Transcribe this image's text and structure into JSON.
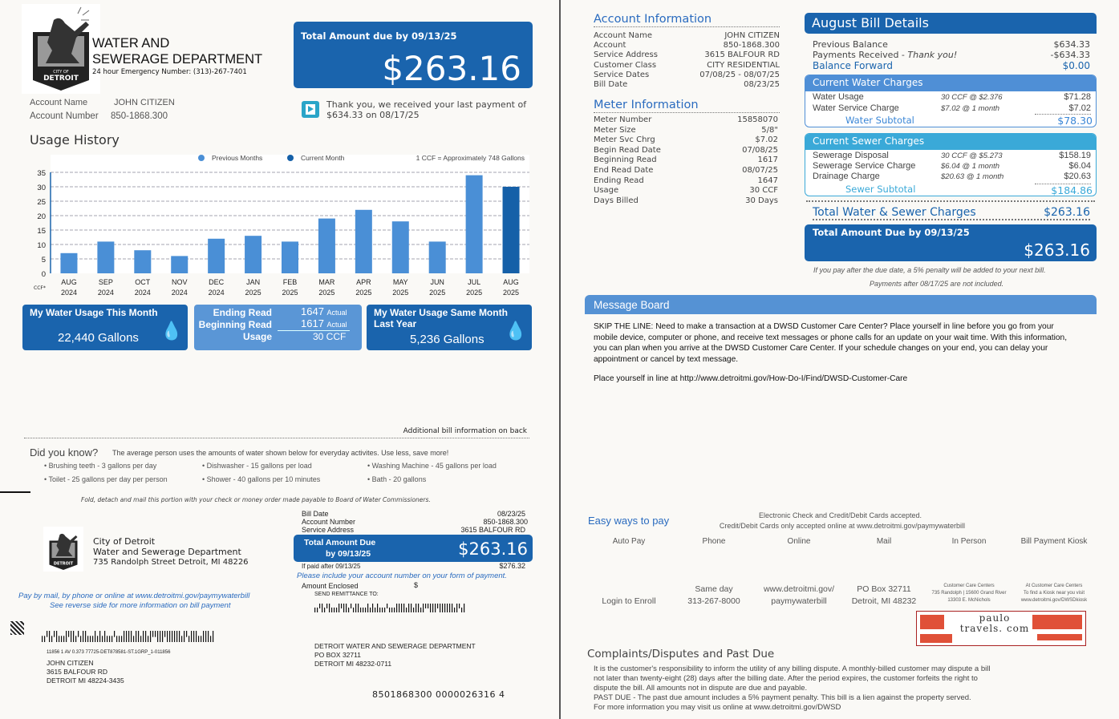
{
  "header": {
    "dept_line1": "WATER AND",
    "dept_line2": "SEWERAGE DEPARTMENT",
    "emergency": "24 hour Emergency Number: (313)-267-7401",
    "logo_text": "CITY OF DETROIT"
  },
  "total_box": {
    "label": "Total Amount due by 09/13/25",
    "amount": "$263.16"
  },
  "thank_you": {
    "line1": "Thank you, we received your last payment of",
    "line2": "$634.33  on  08/17/25",
    "icon": "play-icon"
  },
  "account": {
    "name_label": "Account Name",
    "name": "JOHN CITIZEN",
    "number_label": "Account Number",
    "number": "850-1868.300"
  },
  "usage": {
    "title": "Usage History"
  },
  "chart_data": {
    "type": "bar",
    "title": "",
    "ylabel": "CCF*",
    "ylim": [
      0,
      35
    ],
    "yticks": [
      0,
      5,
      10,
      15,
      20,
      25,
      30,
      35
    ],
    "grid": true,
    "legend": [
      {
        "name": "Previous Months",
        "color": "#4a8fd6"
      },
      {
        "name": "Current Month",
        "color": "#1560a8"
      }
    ],
    "legend_position": "top",
    "note": "1 CCF = Approximately 748 Gallons",
    "categories": [
      [
        "AUG",
        "2024"
      ],
      [
        "SEP",
        "2024"
      ],
      [
        "OCT",
        "2024"
      ],
      [
        "NOV",
        "2024"
      ],
      [
        "DEC",
        "2024"
      ],
      [
        "JAN",
        "2025"
      ],
      [
        "FEB",
        "2025"
      ],
      [
        "MAR",
        "2025"
      ],
      [
        "APR",
        "2025"
      ],
      [
        "MAY",
        "2025"
      ],
      [
        "JUN",
        "2025"
      ],
      [
        "JUL",
        "2025"
      ],
      [
        "AUG",
        "2025"
      ]
    ],
    "values": [
      7,
      11,
      8,
      6,
      12,
      13,
      11,
      19,
      22,
      18,
      11,
      34,
      30
    ],
    "current_index": 12
  },
  "usage_boxes": {
    "this_month_label": "My Water Usage This Month",
    "this_month_value": "22,440 Gallons",
    "ending_label": "Ending Read",
    "ending_value": "1647",
    "beginning_label": "Beginning Read",
    "beginning_value": "1617",
    "actual": "Actual",
    "usage_label": "Usage",
    "usage_value": "30 CCF",
    "last_year_label1": "My Water Usage Same Month",
    "last_year_label2": "Last Year",
    "last_year_value": "5,236 Gallons"
  },
  "did_you_know": {
    "additional": "Additional  bill  information  on  back",
    "title": "Did you know?",
    "intro": "The average person uses the amounts of water shown below for everyday activites.  Use less, save more!",
    "items": [
      "Brushing  teeth - 3 gallons per day",
      "Dishwasher - 15 gallons per load",
      "Washing  Machine - 45 gallons per load",
      "Toilet - 25 gallons per day per person",
      "Shower - 40 gallons per 10 minutes",
      "Bath - 20 gallons"
    ],
    "fold": "Fold,  detach  and  mail  this  portion  with  your  check  or  money  order  made  payable  to  Board  of  Water  Commissioners."
  },
  "stub": {
    "org1": "City of Detroit",
    "org2": "Water and Sewerage Department",
    "org3": "735 Randolph Street Detroit, MI 48226",
    "pay_line1": "Pay by mail, by phone or online at www.detroitmi.gov/paymywaterbill",
    "pay_line2": "See reverse side for more information on bill payment",
    "bill_date_label": "Bill Date",
    "bill_date": "08/23/25",
    "acct_label": "Account Number",
    "acct": "850-1868.300",
    "svc_label": "Service Address",
    "svc": "3615 BALFOUR RD",
    "due_label1": "Total Amount Due",
    "due_label2": "by 09/13/25",
    "due_amount": "$263.16",
    "late_label": "If paid after 09/13/25",
    "late_amount": "$276.32",
    "include": "Please include your account number on your form of payment.",
    "enclosed": "Amount Enclosed",
    "dollar": "$",
    "remit": "SEND REMITTANCE TO:",
    "mail_code": "11856 1 AV 0.373    77725-DET878581-ST.1GRP_1-011856",
    "cust_name": "JOHN CITIZEN",
    "cust_addr1": "3615  BALFOUR  RD",
    "cust_addr2": "DETROIT  MI  48224-3435",
    "dwsd1": "DETROIT WATER AND SEWERAGE DEPARTMENT",
    "dwsd2": "PO BOX 32711",
    "dwsd3": "DETROIT  MI  48232-0711",
    "scanline": "8501868300 0000026316 4"
  },
  "account_info": {
    "title": "Account Information",
    "rows": [
      [
        "Account Name",
        "JOHN CITIZEN"
      ],
      [
        "Account",
        "850-1868.300"
      ],
      [
        "Service Address",
        "3615 BALFOUR RD"
      ],
      [
        "Customer Class",
        "CITY RESIDENTIAL"
      ],
      [
        "Service Dates",
        "07/08/25 - 08/07/25"
      ],
      [
        "Bill Date",
        "08/23/25"
      ]
    ]
  },
  "meter_info": {
    "title": "Meter Information",
    "rows": [
      [
        "Meter Number",
        "15858070"
      ],
      [
        "Meter Size",
        "5/8\""
      ],
      [
        "Meter Svc Chrg",
        "$7.02"
      ],
      [
        "Begin Read Date",
        "07/08/25"
      ],
      [
        "Beginning  Read",
        "1617"
      ],
      [
        "End Read Date",
        "08/07/25"
      ],
      [
        "Ending  Read",
        "1647"
      ],
      [
        "Usage",
        "30 CCF"
      ],
      [
        "Days Billed",
        "30 Days"
      ]
    ]
  },
  "bill_details": {
    "title": "August Bill Details",
    "prev_label": "Previous Balance",
    "prev": "$634.33",
    "paid_label": "Payments Received - ",
    "paid_thanks": "Thank you!",
    "paid": "-$634.33",
    "fwd_label": "Balance Forward",
    "fwd": "$0.00",
    "water": {
      "title": "Current Water Charges",
      "rows": [
        [
          "Water Usage",
          "30 CCF @ $2.376",
          "$71.28"
        ],
        [
          "Water Service Charge",
          "$7.02 @ 1 month",
          "$7.02"
        ]
      ],
      "subtotal_label": "Water Subtotal",
      "subtotal": "$78.30"
    },
    "sewer": {
      "title": "Current Sewer Charges",
      "rows": [
        [
          "Sewerage  Disposal",
          "30 CCF @ $5.273",
          "$158.19"
        ],
        [
          "Sewerage Service Charge",
          "$6.04 @ 1 month",
          "$6.04"
        ],
        [
          "Drainage  Charge",
          "$20.63 @ 1 month",
          "$20.63"
        ]
      ],
      "subtotal_label": "Sewer Subtotal",
      "subtotal": "$184.86"
    },
    "total_label": "Total Water & Sewer Charges",
    "total": "$263.16",
    "due_label": "Total Amount Due by 09/13/25",
    "due": "$263.16",
    "penalty": "If you pay after the due date, a 5% penalty will be added to your next bill.",
    "payments_after": "Payments after 08/17/25 are not included."
  },
  "message_board": {
    "title": "Message Board",
    "body": "SKIP THE LINE: Need to make a transaction at a DWSD Customer Care Center? Place yourself in line before you go from your mobile device, computer or phone, and receive text messages or phone calls for an update on your wait time. With this information, you can plan when you arrive at the DWSD Customer Care Center. If your schedule changes on your end, you can delay your appointment or cancel by text message.",
    "link": "Place yourself in line at http://www.detroitmi.gov/How-Do-I/Find/DWSD-Customer-Care"
  },
  "pay": {
    "title": "Easy ways to pay",
    "accepted1": "Electronic Check and Credit/Debit Cards accepted.",
    "accepted2": "Credit/Debit  Cards  only  accepted  online   at  www.detroitmi.gov/paymywaterbill",
    "methods": [
      {
        "name": "Auto Pay",
        "d1": "",
        "d2": "Login to Enroll"
      },
      {
        "name": "Phone",
        "d1": "Same day",
        "d2": "313-267-8000"
      },
      {
        "name": "Online",
        "d1": "www.detroitmi.gov/",
        "d2": "paymywaterbill"
      },
      {
        "name": "Mail",
        "d1": "PO Box 32711",
        "d2": "Detroit, MI 48232"
      },
      {
        "name": "In Person",
        "d0": "Customer Care Centers",
        "d1": "735 Randolph | 15600 Grand River",
        "d2": "13303 E. McNichols"
      },
      {
        "name": "Bill  Payment  Kiosk",
        "d0": "At Customer Care Centers",
        "d1": "To find a Kiosk near you visit",
        "d2": "www.detroitmi.gov/DWSDkiosk"
      }
    ]
  },
  "complaints": {
    "title": "Complaints/Disputes  and  Past  Due",
    "lines": [
      "It is the customer's responsibility to inform the utility of any billing dispute.  A monthly-billed customer may dispute a bill",
      "not later than twenty-eight (28) days after the billing date.  After the period expires, the customer forfeits the right to",
      "dispute the bill.  All amounts not in dispute are due and payable.",
      "PAST DUE - The past due amount includes a 5% payment penalty.  This bill is a lien against the property served.",
      "For more information you may visit us online at www.detroitmi.gov/DWSD"
    ]
  },
  "watermark": {
    "text": "paulo travels .com"
  },
  "colors": {
    "primary": "#1a64ad",
    "light": "#5592d4",
    "sewer": "#3aa9d8",
    "link": "#2a6bbf"
  }
}
